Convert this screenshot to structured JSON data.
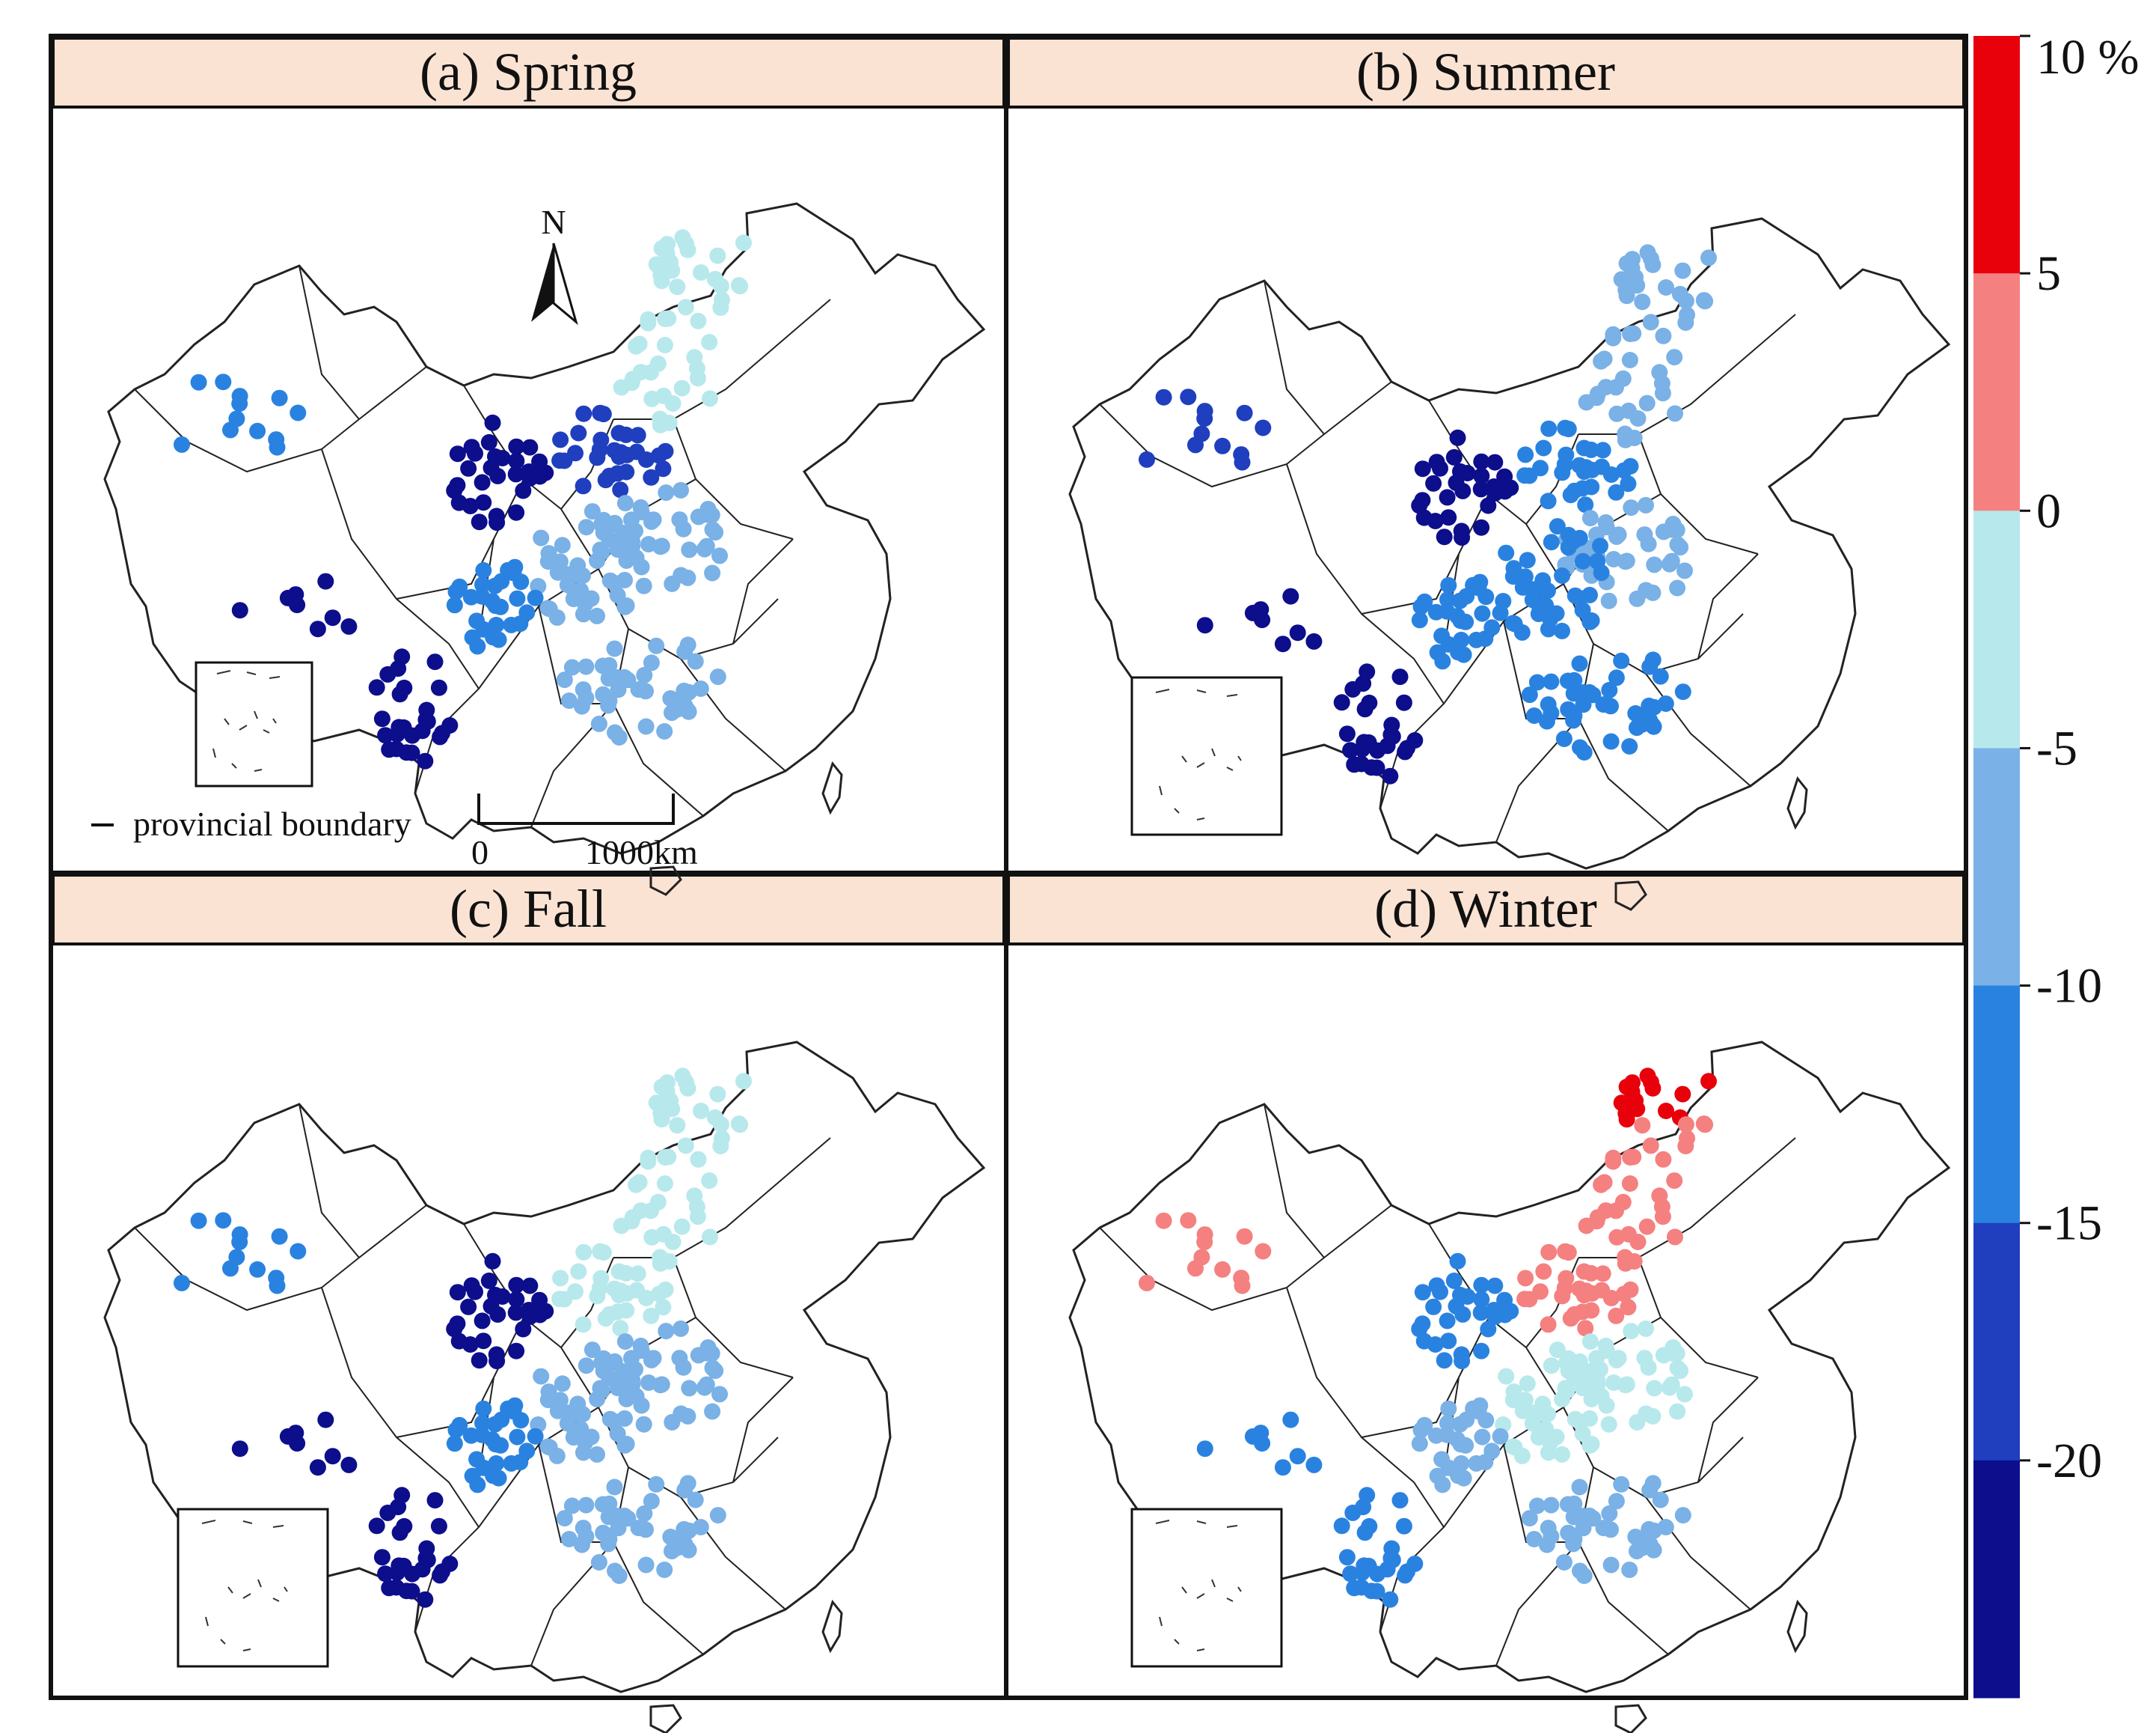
{
  "panels": [
    {
      "id": "spring",
      "title": "(a) Spring"
    },
    {
      "id": "summer",
      "title": "(b) Summer"
    },
    {
      "id": "fall",
      "title": "(c) Fall"
    },
    {
      "id": "winter",
      "title": "(d) Winter"
    }
  ],
  "legend": {
    "boundary_label": "provincial boundary",
    "scale_start": "0",
    "scale_end": "1000km",
    "north_label": "N"
  },
  "colorbar": {
    "ticks": [
      "10 %",
      "5",
      "0",
      "-5",
      "-10",
      "-15",
      "-20"
    ],
    "bins": [
      {
        "range": "5 to 10",
        "color": "#e8000b"
      },
      {
        "range": "0 to 5",
        "color": "#f58080"
      },
      {
        "range": "-5 to 0",
        "color": "#b7e8ec"
      },
      {
        "range": "-10 to -5",
        "color": "#7ab1e6"
      },
      {
        "range": "-15 to -10",
        "color": "#2a82e0"
      },
      {
        "range": "-20 to -15",
        "color": "#1f3fbf"
      },
      {
        "range": "below -20",
        "color": "#0c0e8c"
      }
    ]
  },
  "colors": {
    "title_bar": "#fbe3d4",
    "frame": "#111111",
    "boundary": "#222222"
  }
}
